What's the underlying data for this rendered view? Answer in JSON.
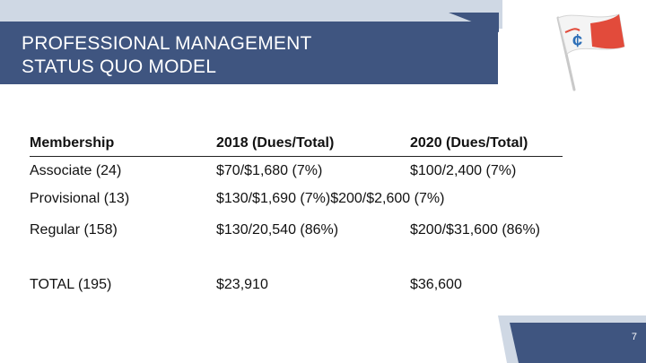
{
  "slide": {
    "title_line1": "PROFESSIONAL MANAGEMENT",
    "title_line2": "STATUS QUO MODEL",
    "page_number": "7",
    "logo_icon": "flag-logo-icon",
    "colors": {
      "primary": "#3f5580",
      "light": "#cfd8e4",
      "flag_red": "#e24b3b",
      "flag_blue": "#2d6fb7"
    }
  },
  "table": {
    "headers": [
      "Membership",
      "2018 (Dues/Total)",
      "2020 (Dues/Total)"
    ],
    "rows": [
      [
        "Associate (24)",
        "$70/$1,680 (7%)",
        "$100/2,400 (7%)"
      ],
      [
        "Provisional (13)",
        "$130/$1,690 (7%)$200/$2,600 (7%)",
        ""
      ],
      [
        "Regular (158)",
        "$130/20,540 (86%)",
        "$200/$31,600 (86%)"
      ],
      [
        "TOTAL (195)",
        "$23,910",
        "$36,600"
      ]
    ]
  }
}
